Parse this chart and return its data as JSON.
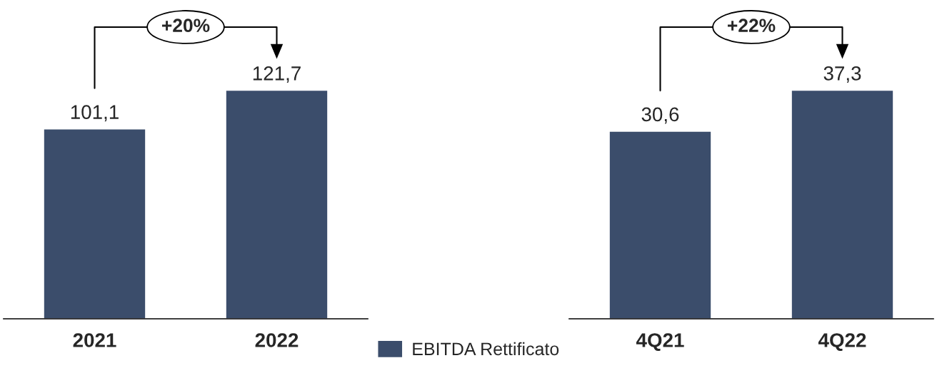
{
  "chart_data": [
    {
      "type": "bar",
      "categories": [
        "2021",
        "2022"
      ],
      "series": [
        {
          "name": "EBITDA Rettificato",
          "color": "#3b4d6b",
          "values": [
            101.1,
            121.7
          ],
          "value_labels": [
            "101,1",
            "121,7"
          ]
        }
      ],
      "annotations": [
        "+20%"
      ],
      "legend": "bottom"
    },
    {
      "type": "bar",
      "categories": [
        "4Q21",
        "4Q22"
      ],
      "series": [
        {
          "name": "EBITDA Rettificato",
          "color": "#3b4d6b",
          "values": [
            30.6,
            37.3
          ],
          "value_labels": [
            "30,6",
            "37,3"
          ]
        }
      ],
      "annotations": [
        "+22%"
      ]
    }
  ]
}
